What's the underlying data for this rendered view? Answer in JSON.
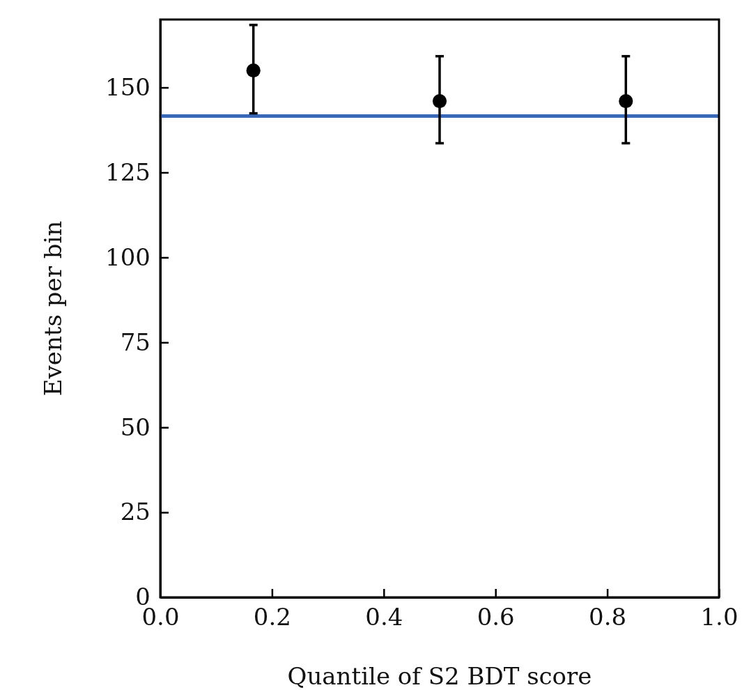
{
  "chart_data": {
    "type": "scatter",
    "xlabel": "Quantile of S2 BDT score",
    "ylabel": "Events per bin",
    "xlim": [
      0,
      1
    ],
    "ylim": [
      0,
      170
    ],
    "xticks": [
      {
        "value": 0,
        "label": "0.0"
      },
      {
        "value": 0.2,
        "label": "0.2"
      },
      {
        "value": 0.4,
        "label": "0.4"
      },
      {
        "value": 0.6,
        "label": "0.6"
      },
      {
        "value": 0.8,
        "label": "0.8"
      },
      {
        "value": 1,
        "label": "1.0"
      }
    ],
    "yticks": [
      0,
      25,
      50,
      75,
      100,
      125,
      150
    ],
    "grid": false,
    "series": [
      {
        "type": "line",
        "color": "#3a68b8",
        "x": [
          0,
          1
        ],
        "values": [
          141.6,
          141.6
        ]
      },
      {
        "marker": "circle",
        "color": "#000000",
        "x": [
          0.1667,
          0.5,
          0.8333
        ],
        "values": [
          155,
          146,
          146
        ],
        "errors": [
          [
            142.4,
            168.4
          ],
          [
            133.6,
            159.2
          ],
          [
            133.6,
            159.2
          ]
        ]
      }
    ]
  }
}
